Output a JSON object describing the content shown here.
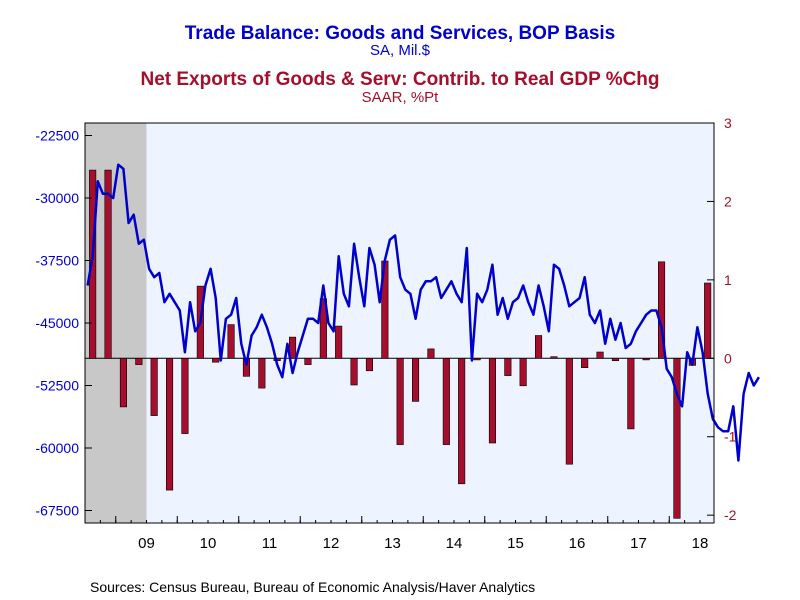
{
  "colors": {
    "trade_line": "#0000cc",
    "net_export_bars": "#a50f2d",
    "plot_bg": "#eef4ff",
    "recession_shade": "#c8c8c8"
  },
  "titles": {
    "line1": "Trade Balance: Goods and Services, BOP Basis",
    "line1_units": "SA, Mil.$",
    "line2": "Net Exports of Goods & Serv: Contrib. to Real GDP %Chg",
    "line2_units": "SAAR, %Pt"
  },
  "source": "Sources:  Census Bureau, Bureau of Economic Analysis/Haver Analytics",
  "chart_data": {
    "type": "bar+line",
    "x_tick_labels": [
      "09",
      "10",
      "11",
      "12",
      "13",
      "14",
      "15",
      "16",
      "17",
      "18"
    ],
    "left_axis": {
      "ylim": [
        -69000,
        -21000
      ],
      "tick_labels": [
        "-22500",
        "-30000",
        "-37500",
        "-45000",
        "-52500",
        "-60000",
        "-67500"
      ],
      "tick_values": [
        -22500,
        -30000,
        -37500,
        -45000,
        -52500,
        -60000,
        -67500
      ]
    },
    "right_axis": {
      "ylim": [
        -2.1,
        3.0
      ],
      "tick_labels": [
        "3",
        "2",
        "1",
        "0",
        "-1",
        "-2"
      ],
      "tick_values": [
        3,
        2,
        1,
        0,
        -1,
        -2
      ]
    },
    "recession_shading": {
      "start": "2008-07",
      "end": "2009-06"
    },
    "line_series": {
      "name": "Trade Balance: Goods and Services, BOP Basis",
      "axis": "left",
      "start": "2008-07",
      "frequency": "monthly",
      "values": [
        -40500,
        -37000,
        -28000,
        -29500,
        -29500,
        -30000,
        -26000,
        -26500,
        -33000,
        -32000,
        -35500,
        -35000,
        -38500,
        -39500,
        -39000,
        -42500,
        -41500,
        -42500,
        -43500,
        -48500,
        -42500,
        -46000,
        -45000,
        -40500,
        -38500,
        -42000,
        -49500,
        -44500,
        -44000,
        -42000,
        -47500,
        -50000,
        -46500,
        -45500,
        -44000,
        -45500,
        -47500,
        -50000,
        -51500,
        -47500,
        -51000,
        -48500,
        -46500,
        -44500,
        -44500,
        -45000,
        -40500,
        -45000,
        -46000,
        -37000,
        -41500,
        -43000,
        -35500,
        -39500,
        -43000,
        -36000,
        -38000,
        -42500,
        -37500,
        -35000,
        -34500,
        -39500,
        -41000,
        -41500,
        -44500,
        -41000,
        -40000,
        -40000,
        -39500,
        -42000,
        -41000,
        -40000,
        -41500,
        -42500,
        -36000,
        -49500,
        -41500,
        -42500,
        -41000,
        -38000,
        -44000,
        -42000,
        -44500,
        -42500,
        -42000,
        -40500,
        -42500,
        -44000,
        -40500,
        -43000,
        -46000,
        -38000,
        -38500,
        -40500,
        -43000,
        -42500,
        -42000,
        -39500,
        -44000,
        -45000,
        -43500,
        -47500,
        -44500,
        -47000,
        -45000,
        -48000,
        -47500,
        -46000,
        -45000,
        -44000,
        -43500,
        -43500,
        -45500,
        -50500,
        -51500,
        -53500,
        -55000,
        -48500,
        -50000,
        -45500,
        -48500,
        -53500,
        -56500,
        -57500,
        -58000,
        -58000,
        -55000,
        -61500,
        -53500,
        -51000,
        -52500,
        -51500
      ]
    },
    "bar_series": {
      "name": "Net Exports of Goods & Serv: Contrib. to Real GDP %Chg",
      "axis": "right",
      "start": "2008Q3",
      "frequency": "quarterly",
      "values": [
        2.4,
        2.4,
        -0.62,
        -0.08,
        -0.73,
        -1.68,
        -0.96,
        0.92,
        -0.05,
        0.43,
        -0.23,
        -0.38,
        -0.03,
        0.27,
        -0.08,
        0.76,
        0.41,
        -0.34,
        -0.16,
        1.24,
        -1.1,
        -0.55,
        0.12,
        -1.1,
        -1.6,
        -0.02,
        -1.08,
        -0.22,
        -0.35,
        0.29,
        0.02,
        -1.35,
        -0.12,
        0.08,
        -0.03,
        -0.9,
        -0.02,
        1.23,
        -2.04,
        -0.09,
        0.96
      ]
    }
  }
}
